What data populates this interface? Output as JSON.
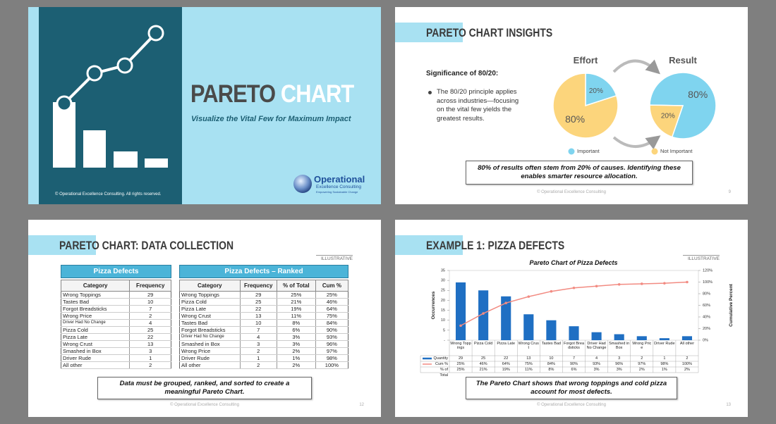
{
  "chart_data": [
    {
      "type": "pie",
      "title": "Effort",
      "categories": [
        "Important",
        "Not Important"
      ],
      "values": [
        20,
        80
      ],
      "value_labels": [
        "20%",
        "80%"
      ],
      "colors": [
        "#7fd4ef",
        "#fcd57c"
      ]
    },
    {
      "type": "pie",
      "title": "Result",
      "values": [
        80,
        20
      ],
      "value_labels": [
        "80%",
        "20%"
      ],
      "colors": [
        "#7fd4ef",
        "#fcd57c"
      ]
    },
    {
      "type": "pareto",
      "title": "Pareto Chart of Pizza Defects",
      "ylabel": "Occurrences",
      "y2label": "Cumulative Percent",
      "categories": [
        "Wrong Toppings",
        "Pizza Cold",
        "Pizza Late",
        "Wrong Crust",
        "Tastes Bad",
        "Forgot Breadsticks",
        "Driver Had No Change",
        "Smashed in Box",
        "Wrong Price",
        "Driver Rude",
        "All other"
      ],
      "series": [
        {
          "name": "Quantity",
          "type": "bar",
          "color": "#1f6fc3",
          "values": [
            29,
            25,
            22,
            13,
            10,
            7,
            4,
            3,
            2,
            1,
            2
          ]
        },
        {
          "name": "Cum %",
          "type": "line",
          "axis": "y2",
          "color": "#f28b82",
          "values": [
            25,
            46,
            64,
            75,
            84,
            90,
            93,
            96,
            97,
            98,
            100
          ],
          "value_labels": [
            "25%",
            "46%",
            "64%",
            "75%",
            "84%",
            "90%",
            "93%",
            "96%",
            "97%",
            "98%",
            "100%"
          ]
        },
        {
          "name": "% of Total",
          "values": [
            25,
            21,
            19,
            11,
            8,
            6,
            3,
            3,
            2,
            1,
            2
          ],
          "value_labels": [
            "25%",
            "21%",
            "19%",
            "11%",
            "8%",
            "6%",
            "3%",
            "3%",
            "2%",
            "1%",
            "2%"
          ]
        }
      ],
      "ylim": [
        0,
        35
      ],
      "yticks": [
        {
          "value": 0,
          "label": "-"
        },
        5,
        10,
        15,
        20,
        25,
        30,
        35
      ],
      "y2lim": [
        0,
        120
      ],
      "y2ticks": [
        {
          "value": 0,
          "label": "0%"
        },
        {
          "value": 20,
          "label": "20%"
        },
        {
          "value": 40,
          "label": "40%"
        },
        {
          "value": 60,
          "label": "60%"
        },
        {
          "value": 80,
          "label": "80%"
        },
        {
          "value": 100,
          "label": "100%"
        },
        {
          "value": 120,
          "label": "120%"
        }
      ]
    }
  ],
  "slides": [
    {
      "title": "PARETO",
      "title_accent": "CHART",
      "subtitle": "Visualize the Vital Few for Maximum Impact",
      "footer": "© Operational Excellence Consulting.  All rights reserved.",
      "logo": {
        "name": "Operational",
        "line2": "Excellence Consulting",
        "tagline": "Empowering Sustainable Change"
      }
    },
    {
      "title": "PARETO CHART INSIGHTS",
      "heading": "Significance of 80/20:",
      "bullet": "The 80/20 principle applies across industries—focusing on the vital few yields the greatest results.",
      "callout": "80% of results often stem from 20% of causes. Identifying these enables smarter resource allocation.",
      "footer": "© Operational Excellence Consulting",
      "page": "9"
    },
    {
      "title": "PARETO CHART: DATA COLLECTION",
      "tag": "ILLUSTRATIVE",
      "tables": [
        {
          "title": "Pizza Defects",
          "header": [
            "Category",
            "Frequency"
          ],
          "rows": [
            [
              "Wrong Toppings",
              "29"
            ],
            [
              "Tastes Bad",
              "10"
            ],
            [
              "Forgot Breadsticks",
              "7"
            ],
            [
              "Wrong Price",
              "2"
            ],
            [
              "Driver Had No Change",
              "4"
            ],
            [
              "Pizza Cold",
              "25"
            ],
            [
              "Pizza Late",
              "22"
            ],
            [
              "Wrong Crust",
              "13"
            ],
            [
              "Smashed in Box",
              "3"
            ],
            [
              "Driver Rude",
              "1"
            ],
            [
              "All other",
              "2"
            ]
          ]
        },
        {
          "title": "Pizza Defects – Ranked",
          "header": [
            "Category",
            "Frequency",
            "% of Total",
            "Cum %"
          ],
          "rows": [
            [
              "Wrong Toppings",
              "29",
              "25%",
              "25%"
            ],
            [
              "Pizza Cold",
              "25",
              "21%",
              "46%"
            ],
            [
              "Pizza Late",
              "22",
              "19%",
              "64%"
            ],
            [
              "Wrong Crust",
              "13",
              "11%",
              "75%"
            ],
            [
              "Tastes Bad",
              "10",
              "8%",
              "84%"
            ],
            [
              "Forgot Breadsticks",
              "7",
              "6%",
              "90%"
            ],
            [
              "Driver Had No Change",
              "4",
              "3%",
              "93%"
            ],
            [
              "Smashed in Box",
              "3",
              "3%",
              "96%"
            ],
            [
              "Wrong Price",
              "2",
              "2%",
              "97%"
            ],
            [
              "Driver Rude",
              "1",
              "1%",
              "98%"
            ],
            [
              "All other",
              "2",
              "2%",
              "100%"
            ]
          ]
        }
      ],
      "callout": "Data must be grouped, ranked, and sorted to create a meaningful Pareto Chart.",
      "footer": "© Operational Excellence Consulting",
      "page": "12"
    },
    {
      "title": "EXAMPLE 1: PIZZA DEFECTS",
      "tag": "ILLUSTRATIVE",
      "callout": "The Pareto Chart shows that wrong toppings and cold pizza account for most defects.",
      "footer": "© Operational Excellence Consulting",
      "page": "13"
    }
  ]
}
